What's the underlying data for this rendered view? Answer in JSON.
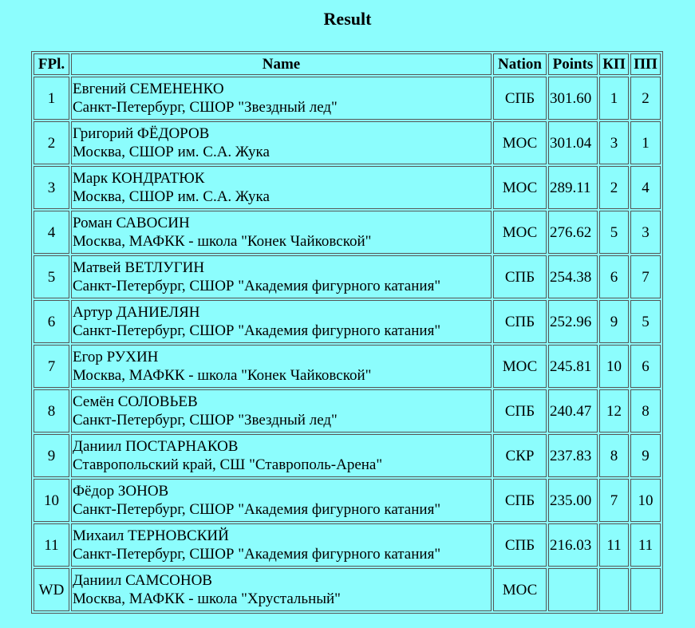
{
  "title": "Result",
  "headers": {
    "fpl": "FPl.",
    "name": "Name",
    "nation": "Nation",
    "points": "Points",
    "kp": "КП",
    "pp": "ПП"
  },
  "rows": [
    {
      "fpl": "1",
      "name": "Евгений СЕМЕНЕНКО",
      "club": "Санкт-Петербург, СШОР \"Звездный лед\"",
      "nation": "СПБ",
      "points": "301.60",
      "kp": "1",
      "pp": "2"
    },
    {
      "fpl": "2",
      "name": "Григорий ФЁДОРОВ",
      "club": "Москва, СШОР им. С.А. Жука",
      "nation": "МОС",
      "points": "301.04",
      "kp": "3",
      "pp": "1"
    },
    {
      "fpl": "3",
      "name": "Марк КОНДРАТЮК",
      "club": "Москва, СШОР им. С.А. Жука",
      "nation": "МОС",
      "points": "289.11",
      "kp": "2",
      "pp": "4"
    },
    {
      "fpl": "4",
      "name": "Роман САВОСИН",
      "club": "Москва, МАФКК - школа \"Конек Чайковской\"",
      "nation": "МОС",
      "points": "276.62",
      "kp": "5",
      "pp": "3"
    },
    {
      "fpl": "5",
      "name": "Матвей ВЕТЛУГИН",
      "club": "Санкт-Петербург, СШОР \"Академия фигурного катания\"",
      "nation": "СПБ",
      "points": "254.38",
      "kp": "6",
      "pp": "7"
    },
    {
      "fpl": "6",
      "name": "Артур ДАНИЕЛЯН",
      "club": "Санкт-Петербург, СШОР \"Академия фигурного катания\"",
      "nation": "СПБ",
      "points": "252.96",
      "kp": "9",
      "pp": "5"
    },
    {
      "fpl": "7",
      "name": "Егор РУХИН",
      "club": "Москва, МАФКК - школа \"Конек Чайковской\"",
      "nation": "МОС",
      "points": "245.81",
      "kp": "10",
      "pp": "6"
    },
    {
      "fpl": "8",
      "name": "Семён СОЛОВЬЕВ",
      "club": "Санкт-Петербург, СШОР \"Звездный лед\"",
      "nation": "СПБ",
      "points": "240.47",
      "kp": "12",
      "pp": "8"
    },
    {
      "fpl": "9",
      "name": "Даниил ПОСТАРНАКОВ",
      "club": "Ставропольский край, СШ \"Ставрополь-Арена\"",
      "nation": "СКР",
      "points": "237.83",
      "kp": "8",
      "pp": "9"
    },
    {
      "fpl": "10",
      "name": "Фёдор ЗОНОВ",
      "club": "Санкт-Петербург, СШОР \"Академия фигурного катания\"",
      "nation": "СПБ",
      "points": "235.00",
      "kp": "7",
      "pp": "10"
    },
    {
      "fpl": "11",
      "name": "Михаил ТЕРНОВСКИЙ",
      "club": "Санкт-Петербург, СШОР \"Академия фигурного катания\"",
      "nation": "СПБ",
      "points": "216.03",
      "kp": "11",
      "pp": "11"
    },
    {
      "fpl": "WD",
      "name": "Даниил САМСОНОВ",
      "club": "Москва, МАФКК - школа \"Хрустальный\"",
      "nation": "МОС",
      "points": "",
      "kp": "",
      "pp": ""
    }
  ]
}
